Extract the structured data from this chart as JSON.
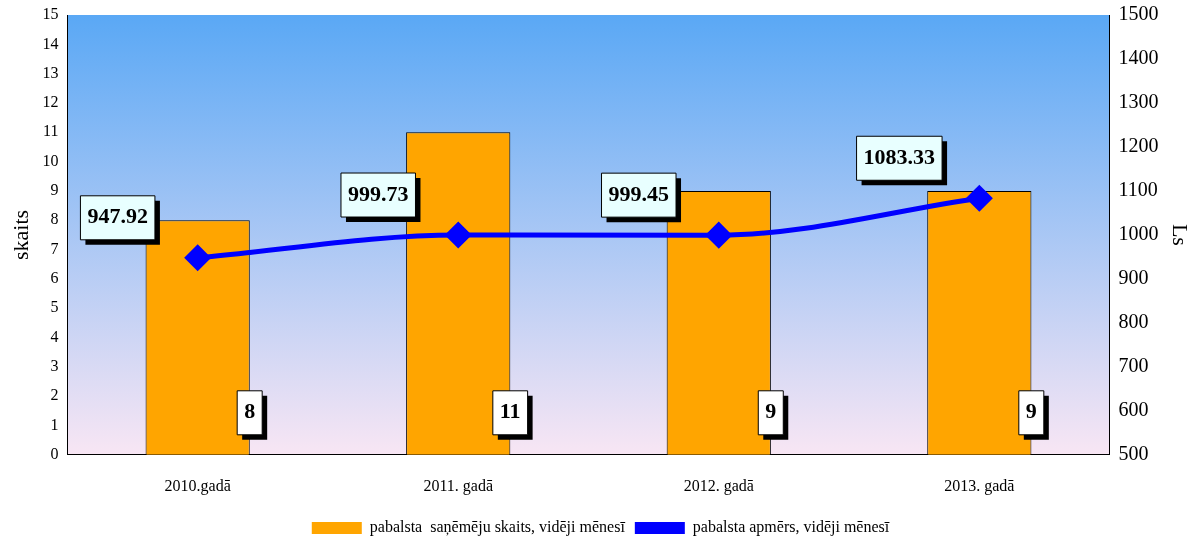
{
  "chart_data": {
    "type": "bar",
    "categories": [
      "2010.gadā",
      "2011. gadā",
      "2012. gadā",
      "2013. gadā"
    ],
    "ylabel": "skaits",
    "y2label": "Ls",
    "ylim": [
      0,
      15
    ],
    "yticks": [
      0,
      1,
      2,
      3,
      4,
      5,
      6,
      7,
      8,
      9,
      10,
      11,
      12,
      13,
      14,
      15
    ],
    "y2lim": [
      500,
      1500
    ],
    "y2ticks": [
      500,
      600,
      700,
      800,
      900,
      1000,
      1100,
      1200,
      1300,
      1400,
      1500
    ],
    "series": [
      {
        "name": "pabalsta  saņēmēju skaits, vidēji mēnesī",
        "color": "#ffa500",
        "values": [
          8,
          11,
          9,
          9
        ]
      },
      {
        "name": "pabalsta apmērs, vidēji mēnesī",
        "type": "line",
        "axis": "y2",
        "color": "#0000ff",
        "marker": "diamond",
        "values": [
          947.92,
          999.73,
          999.45,
          1083.33
        ]
      }
    ],
    "data_labels": true,
    "grid": false,
    "legend": "bottom"
  }
}
